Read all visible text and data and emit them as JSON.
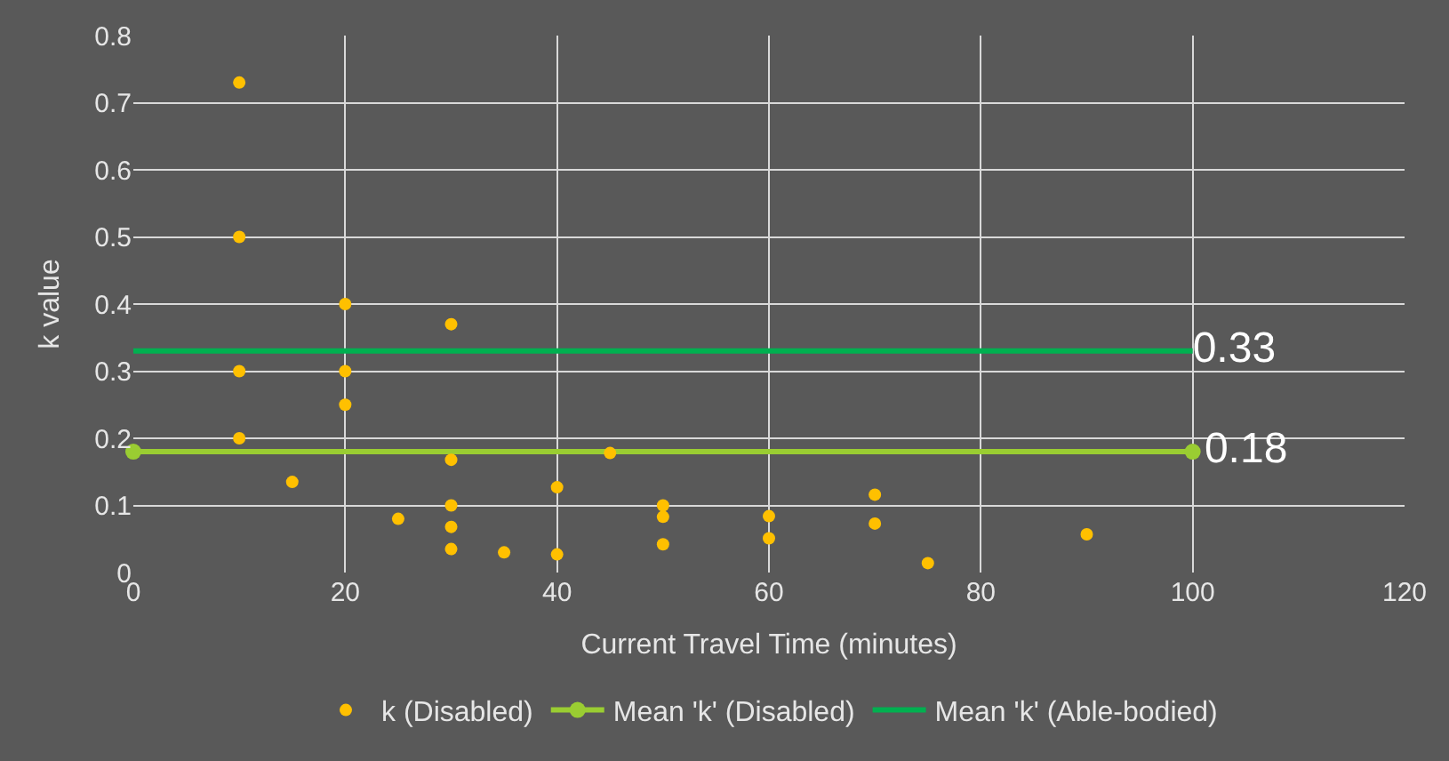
{
  "chart_data": {
    "type": "scatter",
    "xlabel": "Current Travel Time (minutes)",
    "ylabel": "k value",
    "xlim": [
      0,
      120
    ],
    "xticks": [
      0,
      20,
      40,
      60,
      80,
      100,
      120
    ],
    "ylim": [
      0,
      0.8
    ],
    "yticks": [
      0,
      0.1,
      0.2,
      0.3,
      0.4,
      0.5,
      0.6,
      0.7,
      0.8
    ],
    "grid": true,
    "legend": "bottom",
    "series": [
      {
        "name": "k (Disabled)",
        "color": "#ffc000",
        "marker": "circle",
        "x": [
          10,
          10,
          10,
          10,
          15,
          20,
          20,
          20,
          25,
          30,
          30,
          30,
          30,
          30,
          35,
          40,
          40,
          45,
          50,
          50,
          50,
          60,
          60,
          70,
          70,
          75,
          90
        ],
        "values": [
          0.73,
          0.5,
          0.3,
          0.2,
          0.135,
          0.4,
          0.3,
          0.25,
          0.08,
          0.37,
          0.168,
          0.1,
          0.068,
          0.035,
          0.03,
          0.127,
          0.027,
          0.178,
          0.1,
          0.083,
          0.042,
          0.084,
          0.051,
          0.116,
          0.073,
          0.014,
          0.057
        ]
      },
      {
        "name": "Mean 'k' (Disabled)",
        "type": "line",
        "color": "#9acd32",
        "marker": "circle",
        "x": [
          0,
          100
        ],
        "values": [
          0.18,
          0.18
        ],
        "value_labels": [
          null,
          "0.18"
        ]
      },
      {
        "name": "Mean 'k' (Able-bodied)",
        "type": "line",
        "color": "#00b050",
        "marker": "none",
        "x": [
          0,
          100
        ],
        "values": [
          0.33,
          0.33
        ],
        "value_labels": [
          null,
          "0.33"
        ]
      }
    ]
  }
}
